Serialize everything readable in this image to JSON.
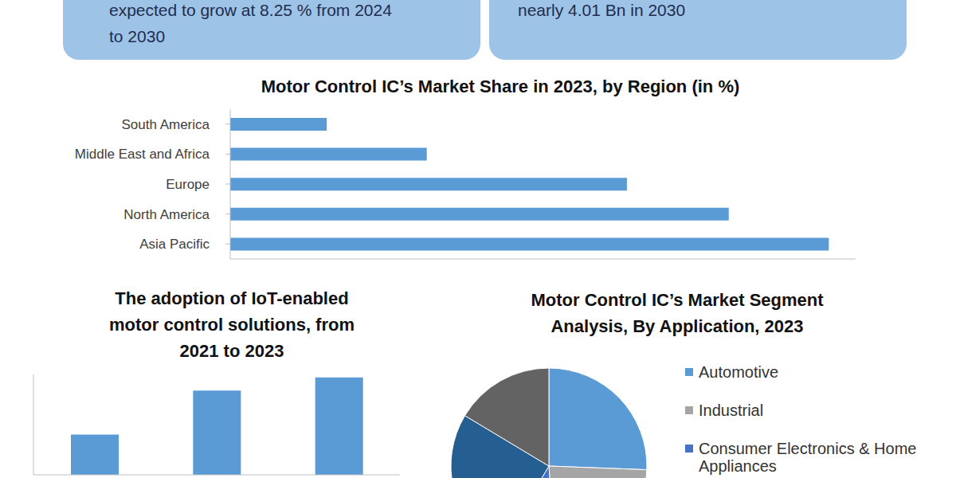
{
  "header_boxes": [
    {
      "lines": [
        "expected to grow at 8.25 % from 2024",
        "to 2030"
      ]
    },
    {
      "lines": [
        "nearly 4.01 Bn in 2030"
      ]
    }
  ],
  "chart_data": [
    {
      "type": "bar",
      "title": [
        "Motor Control IC’s Market Share in 2023, by Region (in %)"
      ],
      "orientation": "horizontal",
      "categories": [
        "South America",
        "Middle East and Africa",
        "Europe",
        "North America",
        "Asia Pacific"
      ],
      "values": [
        5.4,
        11,
        22.2,
        27.9,
        33.5
      ],
      "color": "#5b9bd5",
      "xlim": [
        0,
        35
      ],
      "grid": false,
      "tick_labels": "y"
    },
    {
      "type": "bar",
      "title": [
        "The adoption of IoT-enabled",
        "motor control solutions, from",
        "2021 to 2023"
      ],
      "categories": [
        null,
        null,
        null
      ],
      "values": [
        40,
        84,
        97
      ],
      "color": "#5b9bd5",
      "ylim": [
        0,
        100
      ],
      "grid": false,
      "tick_labels": false
    },
    {
      "type": "pie",
      "title": [
        "Motor Control IC’s Market Segment",
        "Analysis, By Application, 2023"
      ],
      "categories": [
        "Automotive",
        "Industrial",
        "Consumer Electronics & Home Appliances",
        null,
        null
      ],
      "values": [
        25.6,
        23.3,
        9.7,
        25,
        16.4
      ],
      "colors": [
        "#5b9bd5",
        "#a5a5a5",
        "#4472c4",
        "#255e91",
        "#636363"
      ],
      "legend": "right"
    }
  ]
}
